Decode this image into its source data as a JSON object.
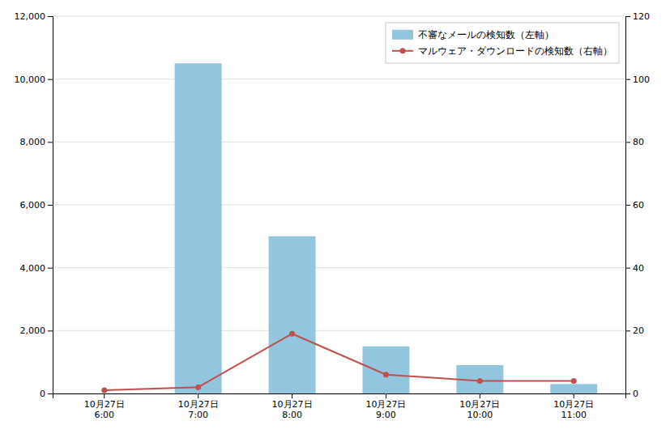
{
  "chart_data": {
    "type": "bar",
    "categories": [
      "10月27日\n6:00",
      "10月27日\n7:00",
      "10月27日\n8:00",
      "10月27日\n9:00",
      "10月27日\n10:00",
      "10月27日\n11:00"
    ],
    "series": [
      {
        "name": "不審なメールの検知数（左軸）",
        "type": "bar",
        "color": "#92C5DE",
        "values": [
          0,
          10500,
          5000,
          1500,
          900,
          300
        ]
      },
      {
        "name": "マルウェア・ダウンロードの検知数（右軸）",
        "type": "line",
        "color": "#C0504D",
        "marker": "circle",
        "axis": "y2",
        "values": [
          1,
          2,
          19,
          6,
          4,
          4
        ]
      }
    ],
    "ylim": [
      0,
      12000
    ],
    "yticks": [
      0,
      {
        "value": 2000,
        "label": "2,000"
      },
      {
        "value": 4000,
        "label": "4,000"
      },
      {
        "value": 6000,
        "label": "6,000"
      },
      {
        "value": 8000,
        "label": "8,000"
      },
      {
        "value": 10000,
        "label": "10,000"
      },
      {
        "value": 12000,
        "label": "12,000"
      }
    ],
    "y2lim": [
      0,
      120
    ],
    "y2ticks": [
      0,
      20,
      40,
      60,
      80,
      100,
      120
    ],
    "grid": true,
    "legend": "upper right"
  }
}
